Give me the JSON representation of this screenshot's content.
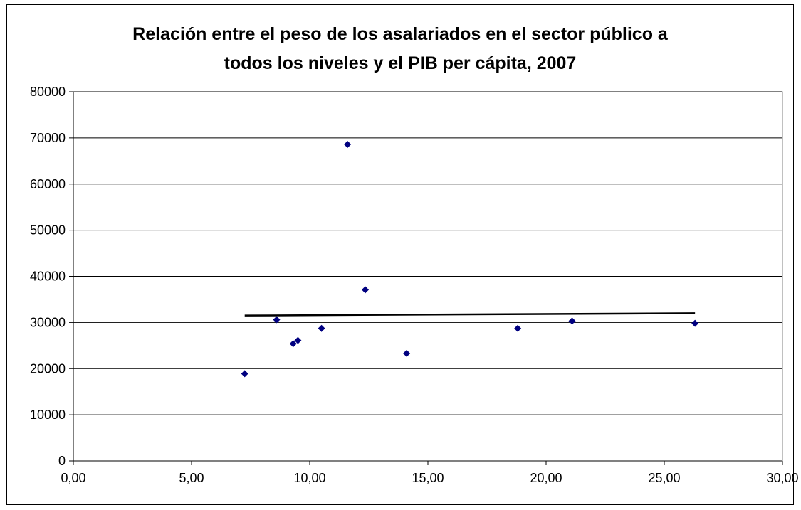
{
  "chart_data": {
    "type": "scatter",
    "title_lines": [
      "Relación entre el peso de los asalariados en el sector público a",
      "todos los niveles y el PIB per cápita, 2007"
    ],
    "xlabel": "",
    "ylabel": "",
    "xlim": [
      0,
      30
    ],
    "ylim": [
      0,
      80000
    ],
    "x_ticks": [
      0,
      5,
      10,
      15,
      20,
      25,
      30
    ],
    "x_tick_labels": [
      "0,00",
      "5,00",
      "10,00",
      "15,00",
      "20,00",
      "25,00",
      "30,00"
    ],
    "y_ticks": [
      0,
      10000,
      20000,
      30000,
      40000,
      50000,
      60000,
      70000,
      80000
    ],
    "y_tick_labels": [
      "0",
      "10000",
      "20000",
      "30000",
      "40000",
      "50000",
      "60000",
      "70000",
      "80000"
    ],
    "grid": "horizontal",
    "legend": "none",
    "marker": "diamond",
    "marker_color": "#000080",
    "trendline_color": "#000000",
    "points": [
      {
        "x": 7.25,
        "y": 18900
      },
      {
        "x": 8.6,
        "y": 30600
      },
      {
        "x": 9.3,
        "y": 25400
      },
      {
        "x": 9.5,
        "y": 26100
      },
      {
        "x": 10.5,
        "y": 28700
      },
      {
        "x": 11.6,
        "y": 68600
      },
      {
        "x": 12.35,
        "y": 37100
      },
      {
        "x": 14.1,
        "y": 23300
      },
      {
        "x": 18.8,
        "y": 28700
      },
      {
        "x": 21.1,
        "y": 30300
      },
      {
        "x": 26.3,
        "y": 29800
      }
    ],
    "trendline": [
      {
        "x": 7.25,
        "y": 31500
      },
      {
        "x": 26.3,
        "y": 32000
      }
    ]
  }
}
